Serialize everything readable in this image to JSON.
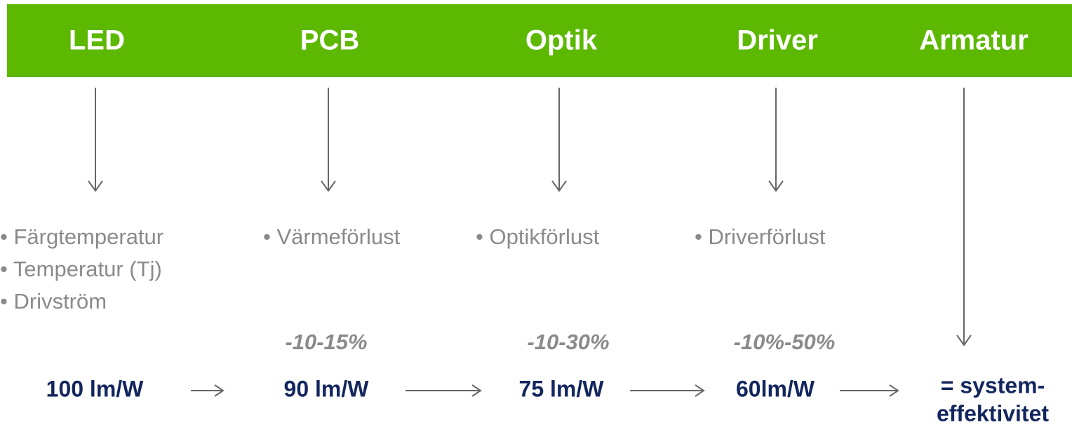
{
  "columns": [
    {
      "title": "LED",
      "bullets": [
        "• Färgtemperatur",
        "• Temperatur (Tj)",
        "• Drivström"
      ],
      "efficiency": "100 lm/W"
    },
    {
      "title": "PCB",
      "bullets": [
        "• Värmeförlust"
      ],
      "loss": "-10-15%",
      "efficiency": "90 lm/W"
    },
    {
      "title": "Optik",
      "bullets": [
        "• Optikförlust"
      ],
      "loss": "-10-30%",
      "efficiency": "75 lm/W"
    },
    {
      "title": "Driver",
      "bullets": [
        "• Driverförlust"
      ],
      "loss": "-10%-50%",
      "efficiency": "60lm/W"
    },
    {
      "title": "Armatur",
      "efficiency_lines": [
        "= system-",
        "effektivitet"
      ]
    }
  ]
}
